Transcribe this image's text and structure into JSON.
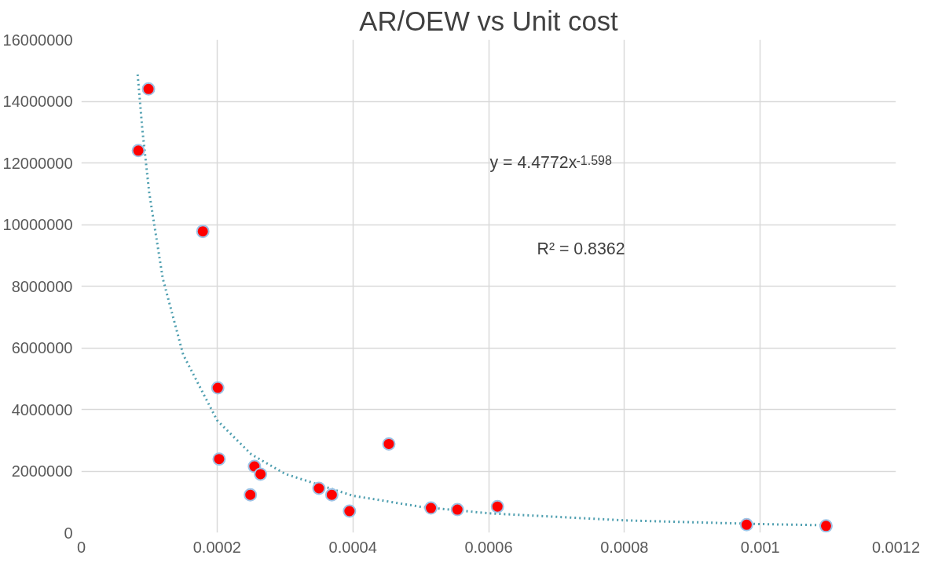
{
  "chart_data": {
    "type": "scatter",
    "title": "AR/OEW vs Unit cost",
    "marker": "circle",
    "grid": true,
    "xlim": [
      0,
      0.0012
    ],
    "xticks": [
      0,
      0.0002,
      0.0004,
      0.0006,
      0.0008,
      0.001,
      0.0012
    ],
    "ylim": [
      0,
      16000000
    ],
    "yticks": [
      0,
      2000000,
      4000000,
      6000000,
      8000000,
      10000000,
      12000000,
      14000000,
      16000000
    ],
    "annotations": [
      "y = 4.4772x$^{-1.598}$",
      "R² = 0.8362"
    ],
    "series": [
      {
        "color": "#ff0000",
        "x": [
          8.4e-05,
          9.9e-05,
          0.000179,
          0.000201,
          0.000203,
          0.000249,
          0.000255,
          0.000264,
          0.00035,
          0.000369,
          0.000395,
          0.000453,
          0.000515,
          0.000554,
          0.000613,
          0.00098,
          0.001097
        ],
        "values": [
          12400000,
          14400000,
          9780000,
          4700000,
          2390000,
          1230000,
          2150000,
          1900000,
          1440000,
          1230000,
          700000,
          2880000,
          800000,
          750000,
          850000,
          260000,
          220000
        ]
      },
      {
        "type": "line",
        "color": "#4f9fb0",
        "line_style": "dotted",
        "marker": "none",
        "x": [
          8.3e-05,
          9e-05,
          0.0001,
          0.00012,
          0.00015,
          0.0002,
          0.00025,
          0.0003,
          0.0004,
          0.0005,
          0.0006,
          0.0008,
          0.001,
          0.0011
        ],
        "values": [
          14870000,
          13060000,
          11040000,
          8250000,
          5780000,
          3650000,
          2550000,
          1910000,
          1200000,
          840000,
          630000,
          400000,
          280000,
          240000
        ]
      }
    ]
  }
}
